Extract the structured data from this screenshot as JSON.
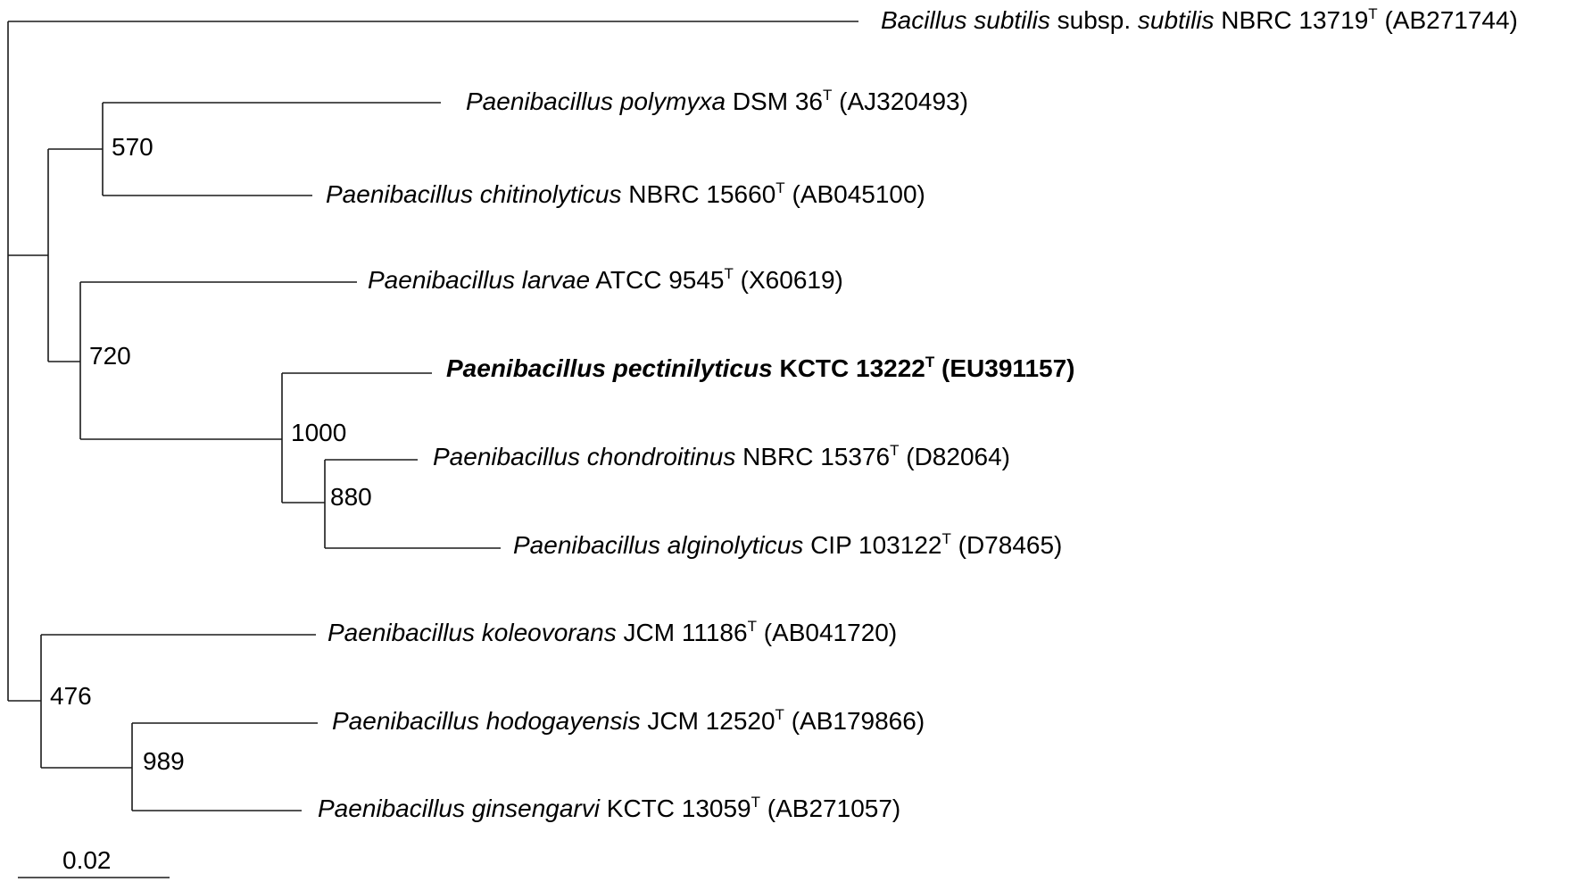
{
  "taxa": [
    {
      "id": "t1",
      "genus": "Bacillus subtilis",
      "mid": " subsp. ",
      "epithet": "subtilis",
      "strain": " NBRC 13719",
      "sup": "T",
      "acc": " (AB271744)",
      "bold": false
    },
    {
      "id": "t2",
      "genus": "Paenibacillus polymyxa",
      "mid": "",
      "epithet": "",
      "strain": " DSM 36",
      "sup": "T",
      "acc": " (AJ320493)",
      "bold": false
    },
    {
      "id": "t3",
      "genus": "Paenibacillus chitinolyticus",
      "mid": "",
      "epithet": "",
      "strain": " NBRC 15660",
      "sup": "T",
      "acc": " (AB045100)",
      "bold": false
    },
    {
      "id": "t4",
      "genus": "Paenibacillus larvae",
      "mid": "",
      "epithet": "",
      "strain": " ATCC 9545",
      "sup": "T",
      "acc": " (X60619)",
      "bold": false
    },
    {
      "id": "t5",
      "genus": "Paenibacillus pectinilyticus",
      "mid": "",
      "epithet": "",
      "strain": " KCTC 13222",
      "sup": "T",
      "acc": " (EU391157)",
      "bold": true
    },
    {
      "id": "t6",
      "genus": "Paenibacillus chondroitinus",
      "mid": "",
      "epithet": "",
      "strain": " NBRC 15376",
      "sup": "T",
      "acc": " (D82064)",
      "bold": false
    },
    {
      "id": "t7",
      "genus": "Paenibacillus alginolyticus",
      "mid": "",
      "epithet": "",
      "strain": " CIP 103122",
      "sup": "T",
      "acc": " (D78465)",
      "bold": false
    },
    {
      "id": "t8",
      "genus": "Paenibacillus koleovorans",
      "mid": "",
      "epithet": "",
      "strain": " JCM 11186",
      "sup": "T",
      "acc": " (AB041720)",
      "bold": false
    },
    {
      "id": "t9",
      "genus": "Paenibacillus hodogayensis",
      "mid": "",
      "epithet": "",
      "strain": " JCM 12520",
      "sup": "T",
      "acc": " (AB179866)",
      "bold": false
    },
    {
      "id": "t10",
      "genus": "Paenibacillus ginsengarvi",
      "mid": "",
      "epithet": "",
      "strain": " KCTC 13059",
      "sup": "T",
      "acc": " (AB271057)",
      "bold": false
    }
  ],
  "bootstrap": [
    {
      "node": "n570",
      "value": "570"
    },
    {
      "node": "n720",
      "value": "720"
    },
    {
      "node": "n1000",
      "value": "1000"
    },
    {
      "node": "n880",
      "value": "880"
    },
    {
      "node": "n476",
      "value": "476"
    },
    {
      "node": "n989",
      "value": "989"
    }
  ],
  "scale_bar": {
    "label": "0.02"
  },
  "colors": {
    "line": "#1a1a1a",
    "text": "#000000"
  }
}
